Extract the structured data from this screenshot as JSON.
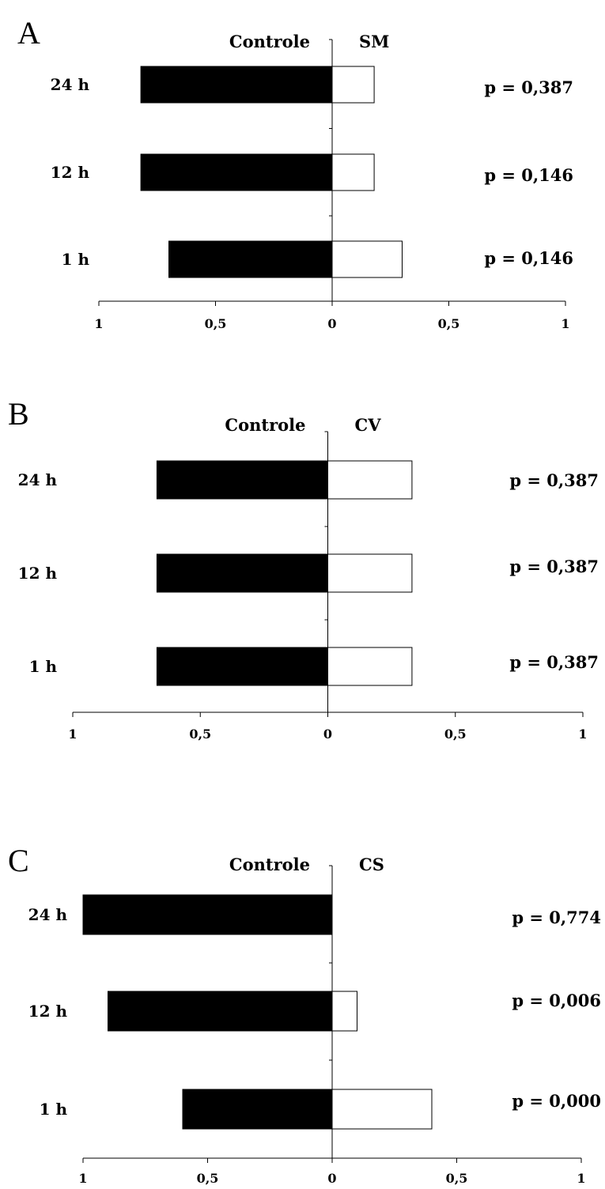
{
  "chart_data": [
    {
      "type": "bar",
      "panel_label": "A",
      "left_header": "Controle",
      "right_header": "SM",
      "categories": [
        "24 h",
        "12 h",
        "1 h"
      ],
      "series": [
        {
          "name": "Controle",
          "values": [
            0.82,
            0.82,
            0.7
          ],
          "color": "#000000"
        },
        {
          "name": "SM",
          "values": [
            0.18,
            0.18,
            0.3
          ],
          "color": "#ffffff"
        }
      ],
      "p_values": [
        "p = 0,387",
        "p = 0,146",
        "p = 0,146"
      ],
      "xlim": [
        -1,
        1
      ],
      "x_ticks": [
        "1",
        "0,5",
        "0",
        "0,5",
        "1"
      ]
    },
    {
      "type": "bar",
      "panel_label": "B",
      "left_header": "Controle",
      "right_header": "CV",
      "categories": [
        "24 h",
        "12 h",
        "1 h"
      ],
      "series": [
        {
          "name": "Controle",
          "values": [
            0.67,
            0.67,
            0.67
          ],
          "color": "#000000"
        },
        {
          "name": "CV",
          "values": [
            0.33,
            0.33,
            0.33
          ],
          "color": "#ffffff"
        }
      ],
      "p_values": [
        "p = 0,387",
        "p = 0,387",
        "p = 0,387"
      ],
      "xlim": [
        -1,
        1
      ],
      "x_ticks": [
        "1",
        "0,5",
        "0",
        "0,5",
        "1"
      ]
    },
    {
      "type": "bar",
      "panel_label": "C",
      "left_header": "Controle",
      "right_header": "CS",
      "categories": [
        "24 h",
        "12 h",
        "1 h"
      ],
      "series": [
        {
          "name": "Controle",
          "values": [
            1.0,
            0.9,
            0.6
          ],
          "color": "#000000"
        },
        {
          "name": "CS",
          "values": [
            0.0,
            0.1,
            0.4
          ],
          "color": "#ffffff"
        }
      ],
      "p_values": [
        "p = 0,774",
        "p = 0,006",
        "p = 0,000"
      ],
      "xlim": [
        -1,
        1
      ],
      "x_ticks": [
        "1",
        "0,5",
        "0",
        "0,5",
        "1"
      ]
    }
  ]
}
